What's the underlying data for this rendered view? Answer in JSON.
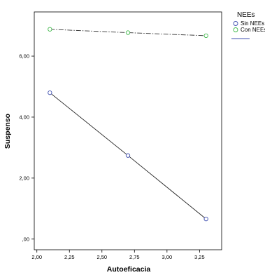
{
  "chart_data": {
    "type": "line",
    "xlabel": "Autoeficacia",
    "ylabel": "Suspenso",
    "xlim": [
      1.98,
      3.42
    ],
    "ylim": [
      -0.35,
      7.45
    ],
    "xticks": [
      "2,00",
      "2,25",
      "2,50",
      "2,75",
      "3,00",
      "3,25"
    ],
    "yticks": [
      ",00",
      "2,00",
      "4,00",
      "6,00"
    ],
    "legend_title": "NEEs",
    "legend_position": "right",
    "grid": false,
    "series": [
      {
        "name": "Sin NEEs",
        "color": "#3f4fb0",
        "line_style": "solid",
        "x": [
          2.1,
          2.7,
          3.3
        ],
        "y": [
          4.8,
          2.74,
          0.66
        ]
      },
      {
        "name": "Con NEEs",
        "color": "#3fb84a",
        "line_style": "dash-dot",
        "x": [
          2.1,
          2.7,
          3.3
        ],
        "y": [
          6.88,
          6.77,
          6.67
        ]
      }
    ]
  }
}
